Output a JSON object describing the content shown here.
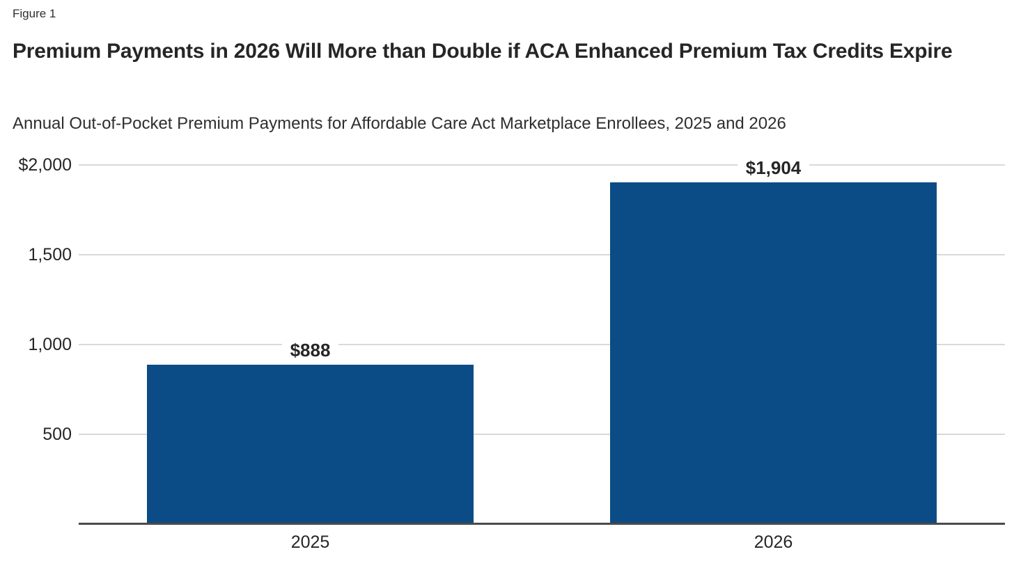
{
  "figure_label": "Figure 1",
  "chart_data": {
    "type": "bar",
    "title": "Premium Payments in 2026 Will More than Double if ACA Enhanced Premium Tax Credits Expire",
    "subtitle": "Annual Out-of-Pocket Premium Payments for Affordable Care Act Marketplace Enrollees, 2025 and 2026",
    "categories": [
      "2025",
      "2026"
    ],
    "values": [
      888,
      1904
    ],
    "data_labels": [
      "$888",
      "$1,904"
    ],
    "xlabel": "",
    "ylabel": "",
    "ylim": [
      0,
      2000
    ],
    "yticks": [
      {
        "value": 2000,
        "label": "$2,000"
      },
      {
        "value": 1500,
        "label": "1,500"
      },
      {
        "value": 1000,
        "label": "1,000"
      },
      {
        "value": 500,
        "label": "500"
      }
    ],
    "grid": true,
    "legend": "none",
    "bar_color": "#0B4C86",
    "gridline_color": "#D9D9D9",
    "axis_color": "#4A4A4B",
    "background_color": "#FFFFFF"
  }
}
